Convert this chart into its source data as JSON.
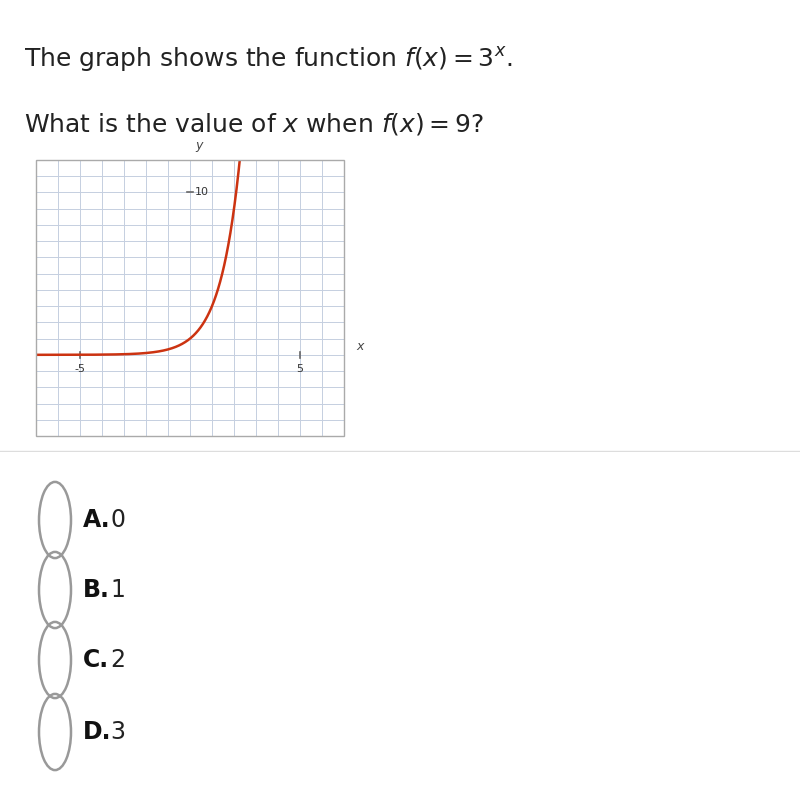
{
  "xlim": [
    -7,
    7
  ],
  "ylim": [
    -5,
    12
  ],
  "curve_color": "#cc3311",
  "curve_linewidth": 1.8,
  "axis_color": "#666666",
  "grid_color": "#c5cfe0",
  "grid_linewidth": 0.7,
  "plot_bg_color": "#eef2f8",
  "text_color": "#222222",
  "circle_color": "#999999",
  "sep_color": "#dddddd",
  "labels": [
    "A.",
    "B.",
    "C.",
    "D."
  ],
  "values": [
    "0",
    "1",
    "2",
    "3"
  ]
}
